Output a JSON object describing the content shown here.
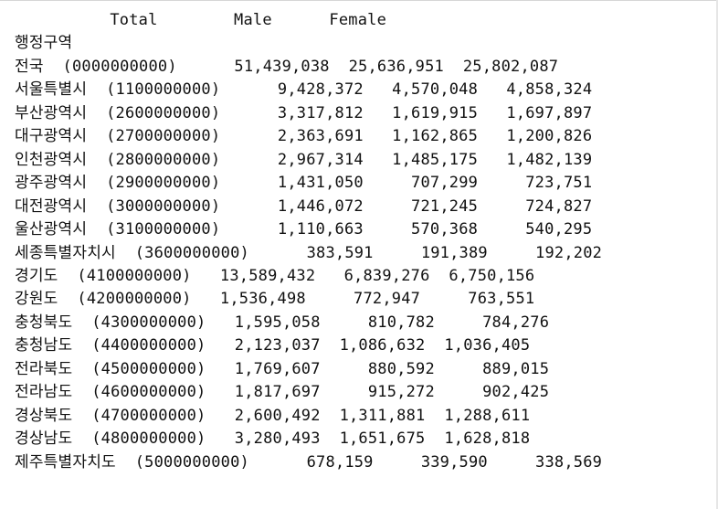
{
  "table": {
    "columns": [
      "Total",
      "Male",
      "Female"
    ],
    "index_name": "행정구역",
    "rows": [
      {
        "label": "전국  (0000000000)",
        "total": "51,439,038",
        "male": "25,636,951",
        "female": "25,802,087"
      },
      {
        "label": "서울특별시  (1100000000)",
        "total": "9,428,372",
        "male": "4,570,048",
        "female": "4,858,324"
      },
      {
        "label": "부산광역시  (2600000000)",
        "total": "3,317,812",
        "male": "1,619,915",
        "female": "1,697,897"
      },
      {
        "label": "대구광역시  (2700000000)",
        "total": "2,363,691",
        "male": "1,162,865",
        "female": "1,200,826"
      },
      {
        "label": "인천광역시  (2800000000)",
        "total": "2,967,314",
        "male": "1,485,175",
        "female": "1,482,139"
      },
      {
        "label": "광주광역시  (2900000000)",
        "total": "1,431,050",
        "male": "707,299",
        "female": "723,751"
      },
      {
        "label": "대전광역시  (3000000000)",
        "total": "1,446,072",
        "male": "721,245",
        "female": "724,827"
      },
      {
        "label": "울산광역시  (3100000000)",
        "total": "1,110,663",
        "male": "570,368",
        "female": "540,295"
      },
      {
        "label": "세종특별자치시  (3600000000)",
        "total": "383,591",
        "male": "191,389",
        "female": "192,202"
      },
      {
        "label": "경기도  (4100000000)",
        "total": "13,589,432",
        "male": "6,839,276",
        "female": "6,750,156"
      },
      {
        "label": "강원도  (4200000000)",
        "total": "1,536,498",
        "male": "772,947",
        "female": "763,551"
      },
      {
        "label": "충청북도  (4300000000)",
        "total": "1,595,058",
        "male": "810,782",
        "female": "784,276"
      },
      {
        "label": "충청남도  (4400000000)",
        "total": "2,123,037",
        "male": "1,086,632",
        "female": "1,036,405"
      },
      {
        "label": "전라북도  (4500000000)",
        "total": "1,769,607",
        "male": "880,592",
        "female": "889,015"
      },
      {
        "label": "전라남도  (4600000000)",
        "total": "1,817,697",
        "male": "915,272",
        "female": "902,425"
      },
      {
        "label": "경상북도  (4700000000)",
        "total": "2,600,492",
        "male": "1,311,881",
        "female": "1,288,611"
      },
      {
        "label": "경상남도  (4800000000)",
        "total": "3,280,493",
        "male": "1,651,675",
        "female": "1,628,818"
      },
      {
        "label": "제주특별자치도  (5000000000)",
        "total": "678,159",
        "male": "339,590",
        "female": "338,569"
      }
    ]
  }
}
